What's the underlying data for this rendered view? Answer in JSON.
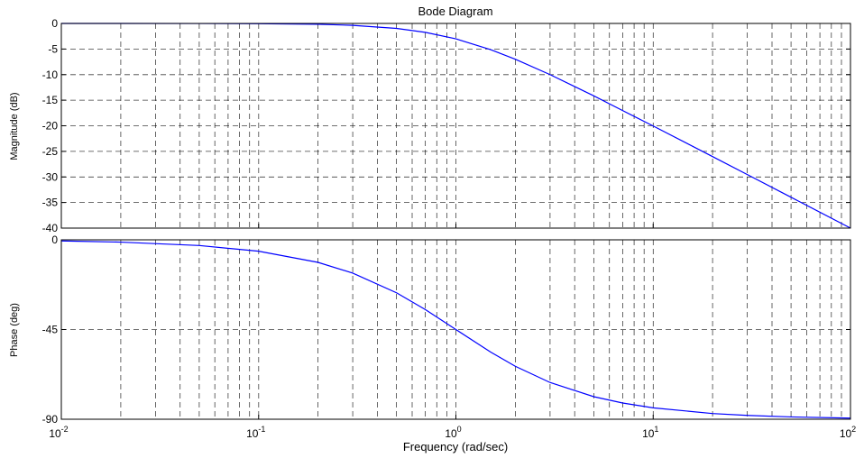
{
  "chart_data": {
    "type": "line",
    "title": "Bode Diagram",
    "xlabel": "Frequency  (rad/sec)",
    "xscale": "log",
    "xlim": [
      0.01,
      100
    ],
    "x_ticks": [
      {
        "base": "10",
        "exp": "-2"
      },
      {
        "base": "10",
        "exp": "-1"
      },
      {
        "base": "10",
        "exp": "0"
      },
      {
        "base": "10",
        "exp": "1"
      },
      {
        "base": "10",
        "exp": "2"
      }
    ],
    "grid": true,
    "line_color": "#0000ff",
    "panels": [
      {
        "name": "magnitude",
        "ylabel": "Magnitude (dB)",
        "ylim": [
          -40,
          0
        ],
        "y_ticks": [
          "0",
          "-5",
          "-10",
          "-15",
          "-20",
          "-25",
          "-30",
          "-35",
          "-40"
        ],
        "y_tick_values": [
          0,
          -5,
          -10,
          -15,
          -20,
          -25,
          -30,
          -35,
          -40
        ],
        "x": [
          0.01,
          0.02,
          0.05,
          0.1,
          0.2,
          0.3,
          0.5,
          0.7,
          1,
          1.5,
          2,
          3,
          5,
          7,
          10,
          20,
          30,
          50,
          100
        ],
        "y": [
          0,
          -0.002,
          -0.01,
          -0.04,
          -0.17,
          -0.37,
          -0.97,
          -1.74,
          -3.01,
          -5.12,
          -6.99,
          -10.0,
          -14.15,
          -17.03,
          -20.04,
          -26.03,
          -29.54,
          -33.98,
          -40.0
        ]
      },
      {
        "name": "phase",
        "ylabel": "Phase (deg)",
        "ylim": [
          -90,
          0
        ],
        "y_ticks": [
          "0",
          "-45",
          "-90"
        ],
        "y_tick_values": [
          0,
          -45,
          -90
        ],
        "x": [
          0.01,
          0.02,
          0.05,
          0.1,
          0.2,
          0.3,
          0.5,
          0.7,
          1,
          1.5,
          2,
          3,
          5,
          7,
          10,
          20,
          30,
          50,
          100
        ],
        "y": [
          -0.57,
          -1.15,
          -2.86,
          -5.71,
          -11.31,
          -16.7,
          -26.57,
          -34.99,
          -45.0,
          -56.31,
          -63.43,
          -71.57,
          -78.69,
          -81.87,
          -84.29,
          -87.14,
          -88.09,
          -88.85,
          -89.43
        ]
      }
    ]
  }
}
